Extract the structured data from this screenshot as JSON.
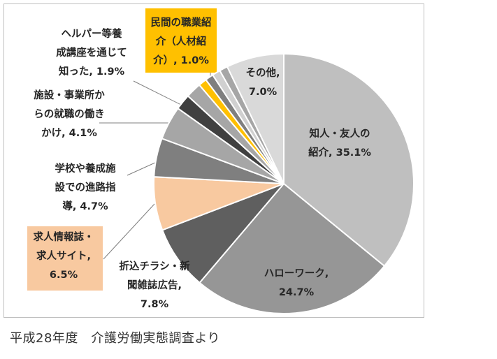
{
  "chart_data": {
    "type": "pie",
    "title": "",
    "start_angle_deg": 0,
    "direction": "clockwise",
    "slices": [
      {
        "label": "知人・友人の紹介",
        "value": 35.1,
        "display": "35.1%",
        "color": "#bfbfbf",
        "label_box": null
      },
      {
        "label": "ハローワーク",
        "value": 24.7,
        "display": "24.7%",
        "color": "#969696",
        "label_box": null
      },
      {
        "label": "折込チラシ・新聞雑誌広告",
        "value": 7.8,
        "display": "7.8%",
        "color": "#5f5f5f",
        "label_box": null
      },
      {
        "label": "求人情報誌・求人サイト",
        "value": 6.5,
        "display": "6.5%",
        "color": "#f8c9a0",
        "label_box": "#f8c9a0"
      },
      {
        "label": "学校や養成施設での進路指導",
        "value": 4.7,
        "display": "4.7%",
        "color": "#7f7f7f",
        "label_box": null
      },
      {
        "label": "施設・事業所からの就職の働きかけ",
        "value": 4.1,
        "display": "4.1%",
        "color": "#a6a6a6",
        "label_box": null
      },
      {
        "label": "",
        "value": 1.9,
        "display": "",
        "color": "#404040",
        "label_box": null
      },
      {
        "label": "ヘルパー等養成講座を通じて知った",
        "value": 1.9,
        "display": "1.9%",
        "color": "#a6a6a6",
        "label_box": null
      },
      {
        "label": "民間の職業紹介（人材紹介）",
        "value": 1.0,
        "display": "1.0%",
        "color": "#ffc000",
        "label_box": "#ffc000"
      },
      {
        "label": "",
        "value": 1.0,
        "display": "",
        "color": "#7f7f7f",
        "label_box": null
      },
      {
        "label": "",
        "value": 1.0,
        "display": "",
        "color": "#d0d0d0",
        "label_box": null
      },
      {
        "label": "",
        "value": 1.0,
        "display": "",
        "color": "#a6a6a6",
        "label_box": null
      },
      {
        "label": "その他",
        "value": 7.0,
        "display": "7.0%",
        "color": "#d9d9d9",
        "label_box": null
      }
    ],
    "labels_text": {
      "s0": [
        "知人・友人の",
        "紹介, 35.1%"
      ],
      "s1": [
        "ハローワーク,",
        "24.7%"
      ],
      "s2": [
        "折込チラシ・新",
        "聞雑誌広告,",
        "7.8%"
      ],
      "s3": [
        "求人情報誌・",
        "求人サイト,",
        "6.5%"
      ],
      "s4": [
        "学校や養成施",
        "設での進路指",
        "導, 4.7%"
      ],
      "s5": [
        "施設・事業所か",
        "らの就職の働き",
        "かけ, 4.1%"
      ],
      "s7": [
        "ヘルパー等養",
        "成講座を通じて",
        "知った, 1.9%"
      ],
      "s8": [
        "民間の職業紹",
        "介（人材紹",
        "介）, 1.0%"
      ],
      "s12": [
        "その他,",
        "7.0%"
      ]
    },
    "source": "平成28年度　介護労働実態調査より"
  }
}
